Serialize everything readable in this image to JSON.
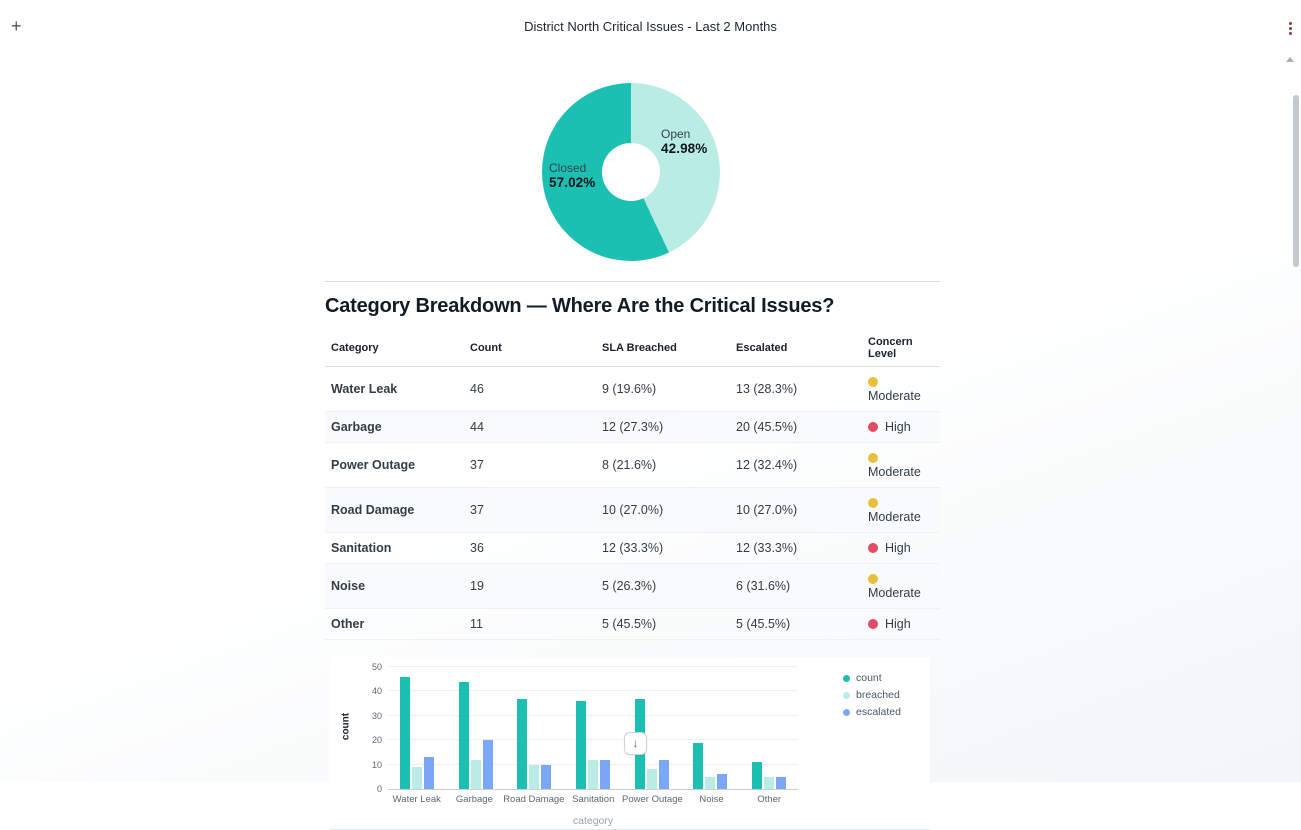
{
  "header": {
    "title": "District North Critical Issues - Last 2 Months",
    "add_label": "+"
  },
  "section_heading": "Category Breakdown — Where Are the Critical Issues?",
  "table": {
    "columns": [
      "Category",
      "Count",
      "SLA Breached",
      "Escalated",
      "Concern Level"
    ],
    "rows": [
      {
        "category": "Water Leak",
        "count": "46",
        "sla_breached": "9 (19.6%)",
        "escalated": "13 (28.3%)",
        "concern_level": "Moderate",
        "concern_color": "#e9c03c"
      },
      {
        "category": "Garbage",
        "count": "44",
        "sla_breached": "12 (27.3%)",
        "escalated": "20 (45.5%)",
        "concern_level": "High",
        "concern_color": "#e34a63"
      },
      {
        "category": "Power Outage",
        "count": "37",
        "sla_breached": "8 (21.6%)",
        "escalated": "12 (32.4%)",
        "concern_level": "Moderate",
        "concern_color": "#e9c03c"
      },
      {
        "category": "Road Damage",
        "count": "37",
        "sla_breached": "10 (27.0%)",
        "escalated": "10 (27.0%)",
        "concern_level": "Moderate",
        "concern_color": "#e9c03c"
      },
      {
        "category": "Sanitation",
        "count": "36",
        "sla_breached": "12 (33.3%)",
        "escalated": "12 (33.3%)",
        "concern_level": "High",
        "concern_color": "#e34a63"
      },
      {
        "category": "Noise",
        "count": "19",
        "sla_breached": "5 (26.3%)",
        "escalated": "6 (31.6%)",
        "concern_level": "Moderate",
        "concern_color": "#e9c03c"
      },
      {
        "category": "Other",
        "count": "11",
        "sla_breached": "5 (45.5%)",
        "escalated": "5 (45.5%)",
        "concern_level": "High",
        "concern_color": "#e34a63"
      }
    ]
  },
  "chart_data": [
    {
      "type": "pie",
      "title": "",
      "slices": [
        {
          "label": "Open",
          "value": 42.98,
          "display": "42.98%",
          "color": "#b9ece4"
        },
        {
          "label": "Closed",
          "value": 57.02,
          "display": "57.02%",
          "color": "#1cc0b3"
        }
      ],
      "unit": "%"
    },
    {
      "type": "bar",
      "categories": [
        "Water Leak",
        "Garbage",
        "Road Damage",
        "Sanitation",
        "Power Outage",
        "Noise",
        "Other"
      ],
      "series": [
        {
          "name": "count",
          "color": "#1cc0b3",
          "values": [
            46,
            44,
            37,
            36,
            37,
            19,
            11
          ]
        },
        {
          "name": "breached",
          "color": "#b9ece4",
          "values": [
            9,
            12,
            10,
            12,
            8,
            5,
            5
          ]
        },
        {
          "name": "escalated",
          "color": "#7aa8f6",
          "values": [
            13,
            20,
            10,
            12,
            12,
            6,
            5
          ]
        }
      ],
      "ylabel": "count",
      "xlabel": "category",
      "ylim": [
        0,
        50
      ],
      "yticks": [
        0,
        10,
        20,
        30,
        40,
        50
      ],
      "legend_position": "right",
      "grid": true
    }
  ],
  "scroll_button": {
    "icon": "↓"
  }
}
